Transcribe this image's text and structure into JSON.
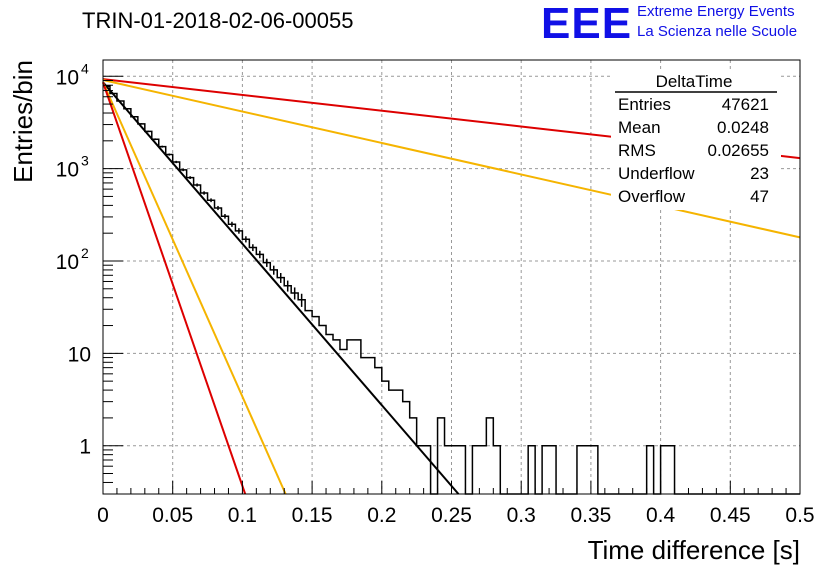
{
  "chart_data": {
    "type": "line",
    "title": "TRIN-01-2018-02-06-00055",
    "xlabel": "Time difference [s]",
    "ylabel": "Entries/bin",
    "xlim": [
      0,
      0.5
    ],
    "ylim": [
      0.3,
      15000
    ],
    "y_scale": "log",
    "grid": true,
    "x_ticks": [
      "0",
      "0.05",
      "0.1",
      "0.15",
      "0.2",
      "0.25",
      "0.3",
      "0.35",
      "0.4",
      "0.45",
      "0.5"
    ],
    "y_ticks": [
      {
        "value": 10000,
        "base": "10",
        "exp": "4"
      },
      {
        "value": 1000,
        "base": "10",
        "exp": "3"
      },
      {
        "value": 100,
        "base": "10",
        "exp": "2"
      },
      {
        "value": 10,
        "base": "10",
        "exp": ""
      },
      {
        "value": 1,
        "base": "1",
        "exp": ""
      }
    ],
    "histogram": {
      "name": "DeltaTime",
      "bin_width": 0.005,
      "color": "#000000",
      "counts": [
        7800,
        6500,
        5400,
        4450,
        3650,
        3050,
        2530,
        2080,
        1730,
        1420,
        1180,
        970,
        800,
        665,
        545,
        455,
        375,
        305,
        250,
        212,
        172,
        140,
        118,
        96,
        80,
        66,
        54,
        45,
        38,
        29,
        25,
        20,
        16,
        14,
        11,
        14,
        14,
        9,
        9,
        7,
        5,
        4,
        4,
        3,
        2,
        1,
        1,
        0,
        2,
        1,
        1,
        1,
        0,
        1,
        1,
        2,
        1,
        0,
        0,
        0,
        0,
        1,
        0,
        1,
        1,
        0,
        0,
        0,
        1,
        1,
        1,
        0,
        0,
        0,
        0,
        0,
        0,
        0,
        1,
        0,
        1,
        1,
        0,
        0,
        0,
        0,
        0,
        0,
        0,
        0,
        0,
        0,
        0,
        0,
        0,
        0,
        0,
        0,
        0,
        0
      ]
    },
    "fit_lines": [
      {
        "color": "#000000",
        "x": [
          0,
          0.255
        ],
        "y": [
          8600,
          0.3
        ]
      },
      {
        "color": "#dd0000",
        "x": [
          0,
          0.5
        ],
        "y": [
          9300,
          1300
        ]
      },
      {
        "color": "#f5b400",
        "x": [
          0,
          0.5
        ],
        "y": [
          9100,
          180
        ]
      },
      {
        "color": "#f5b400",
        "x": [
          0,
          0.131
        ],
        "y": [
          8600,
          0.3
        ]
      },
      {
        "color": "#dd0000",
        "x": [
          0,
          0.102
        ],
        "y": [
          8600,
          0.3
        ]
      }
    ],
    "stats_box": {
      "title": "DeltaTime",
      "rows": [
        {
          "label": "Entries",
          "value": "47621"
        },
        {
          "label": "Mean",
          "value": "0.0248"
        },
        {
          "label": "RMS",
          "value": "0.02655"
        },
        {
          "label": "Underflow",
          "value": "23"
        },
        {
          "label": "Overflow",
          "value": "47"
        }
      ]
    }
  },
  "logo": {
    "mark": "EEE",
    "line1": "Extreme Energy Events",
    "line2": "La Scienza nelle Scuole"
  }
}
